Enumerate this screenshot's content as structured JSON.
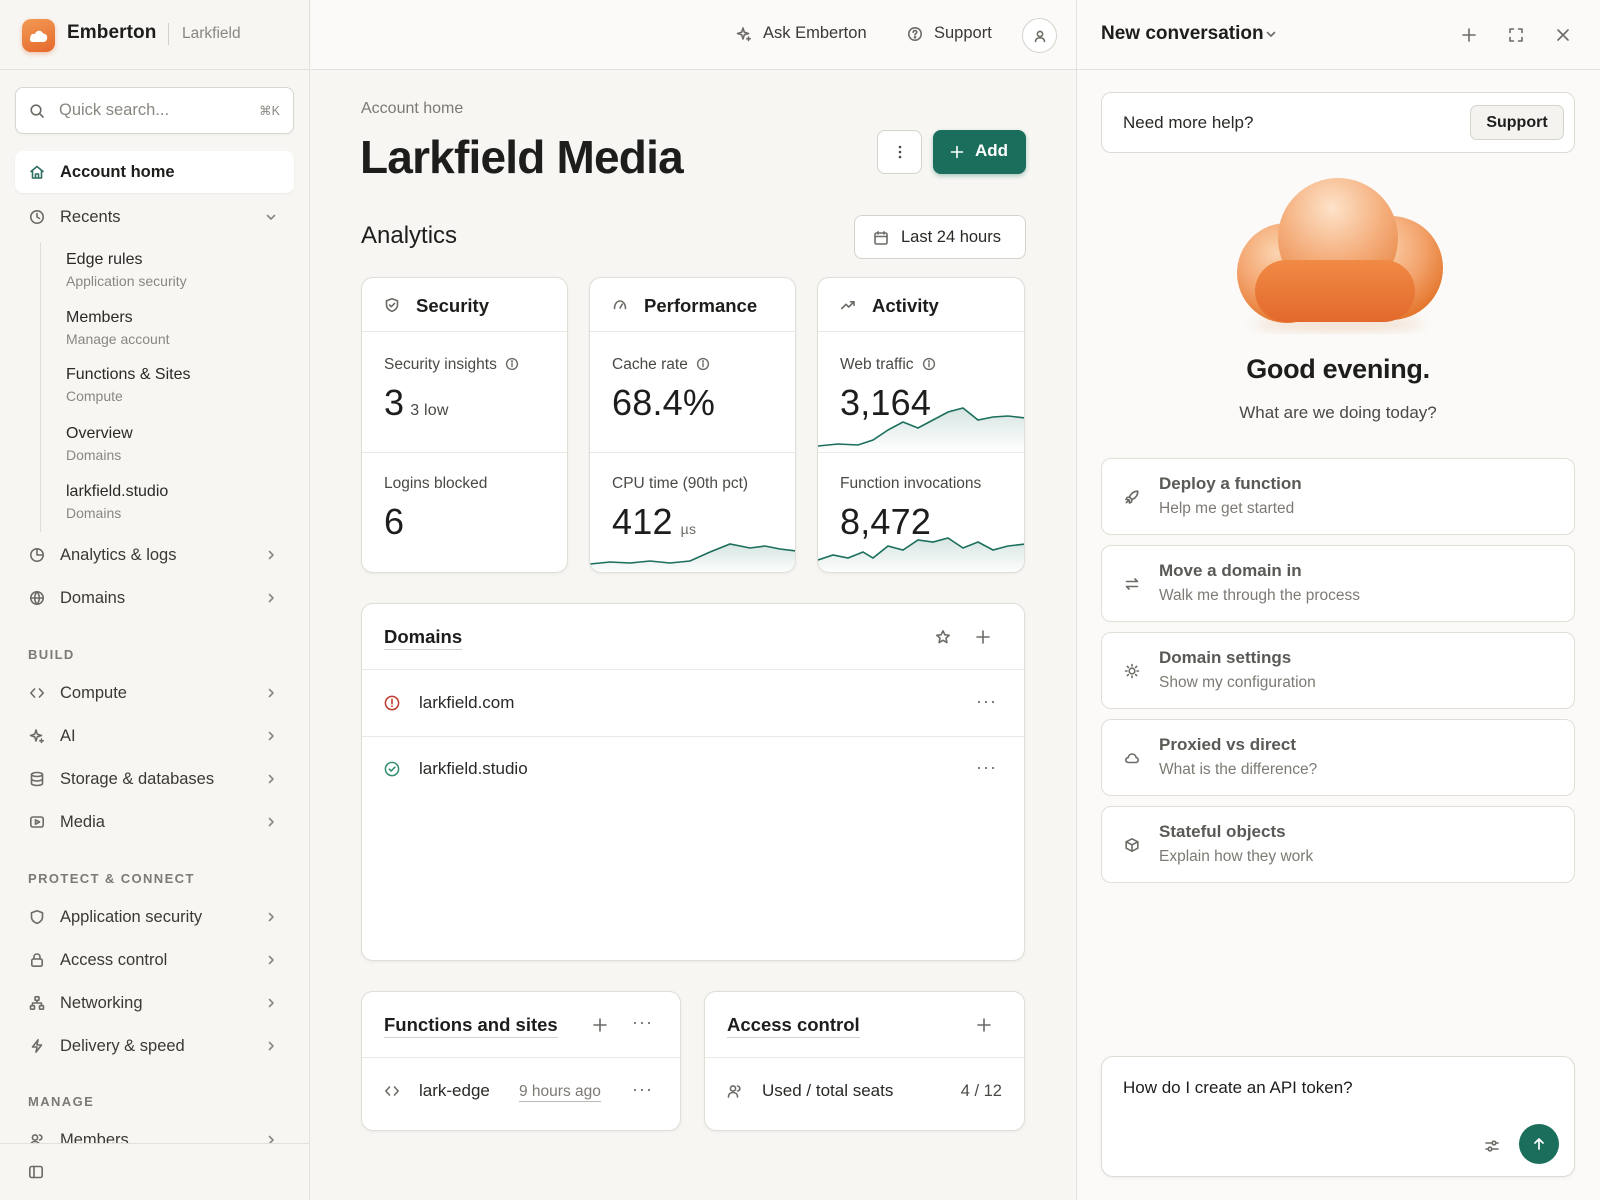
{
  "app": {
    "name": "Emberton",
    "account": "Larkfield"
  },
  "search": {
    "placeholder": "Quick search...",
    "shortcut": "⌘K"
  },
  "sidebar": {
    "home": "Account home",
    "recents_label": "Recents",
    "recents": [
      {
        "title": "Edge rules",
        "subtitle": "Application security"
      },
      {
        "title": "Members",
        "subtitle": "Manage account"
      },
      {
        "title": "Functions & Sites",
        "subtitle": "Compute"
      },
      {
        "title": "Overview",
        "subtitle": "Domains"
      },
      {
        "title": "larkfield.studio",
        "subtitle": "Domains"
      }
    ],
    "top_items": [
      {
        "label": "Analytics & logs",
        "icon": "pie-chart-icon"
      },
      {
        "label": "Domains",
        "icon": "globe-icon"
      }
    ],
    "build_header": "BUILD",
    "build_items": [
      {
        "label": "Compute",
        "icon": "code-icon"
      },
      {
        "label": "AI",
        "icon": "sparkle-icon"
      },
      {
        "label": "Storage & databases",
        "icon": "database-icon"
      },
      {
        "label": "Media",
        "icon": "media-icon"
      }
    ],
    "protect_header": "PROTECT & CONNECT",
    "protect_items": [
      {
        "label": "Application security",
        "icon": "shield-icon"
      },
      {
        "label": "Access control",
        "icon": "lock-icon"
      },
      {
        "label": "Networking",
        "icon": "network-icon"
      },
      {
        "label": "Delivery & speed",
        "icon": "bolt-icon"
      }
    ],
    "manage_header": "MANAGE",
    "manage_items": [
      {
        "label": "Members",
        "icon": "users-icon"
      }
    ]
  },
  "topbar": {
    "ask": "Ask Emberton",
    "support": "Support"
  },
  "main": {
    "breadcrumb": "Account home",
    "title": "Larkfield Media",
    "add_label": "Add",
    "analytics_title": "Analytics",
    "range": "Last 24 hours",
    "cards": {
      "security": {
        "title": "Security",
        "m1_label": "Security insights",
        "m1_value": "3",
        "m1_sub": "3 low",
        "m2_label": "Logins blocked",
        "m2_value": "6"
      },
      "performance": {
        "title": "Performance",
        "m1_label": "Cache rate",
        "m1_value": "68.4%",
        "m2_label": "CPU time (90th pct)",
        "m2_value": "412",
        "m2_unit": "µs"
      },
      "activity": {
        "title": "Activity",
        "m1_label": "Web traffic",
        "m1_value": "3,164",
        "m2_label": "Function invocations",
        "m2_value": "8,472"
      }
    },
    "domains": {
      "title": "Domains",
      "rows": [
        {
          "name": "larkfield.com",
          "status": "warning"
        },
        {
          "name": "larkfield.studio",
          "status": "active"
        }
      ]
    },
    "functions": {
      "title": "Functions and sites",
      "rows": [
        {
          "name": "lark-edge",
          "time": "9 hours ago"
        }
      ]
    },
    "access": {
      "title": "Access control",
      "rows": [
        {
          "label": "Used / total seats",
          "value": "4 / 12"
        }
      ]
    }
  },
  "panel": {
    "title": "New conversation",
    "help_question": "Need more help?",
    "help_button": "Support",
    "greeting": "Good evening.",
    "greeting_sub": "What are we doing today?",
    "suggestions": [
      {
        "title": "Deploy a function",
        "subtitle": "Help me get started",
        "icon": "rocket-icon"
      },
      {
        "title": "Move a domain in",
        "subtitle": "Walk me through the process",
        "icon": "transfer-icon"
      },
      {
        "title": "Domain settings",
        "subtitle": "Show my configuration",
        "icon": "sun-icon"
      },
      {
        "title": "Proxied vs direct",
        "subtitle": "What is the difference?",
        "icon": "cloud-icon"
      },
      {
        "title": "Stateful objects",
        "subtitle": "Explain how they work",
        "icon": "box-icon"
      }
    ],
    "composer_text": "How do I create an API token?"
  },
  "colors": {
    "accent": "#1b6e5c",
    "brand": "#e4682b",
    "warning": "#c0392b",
    "success": "#2f8f6f"
  }
}
